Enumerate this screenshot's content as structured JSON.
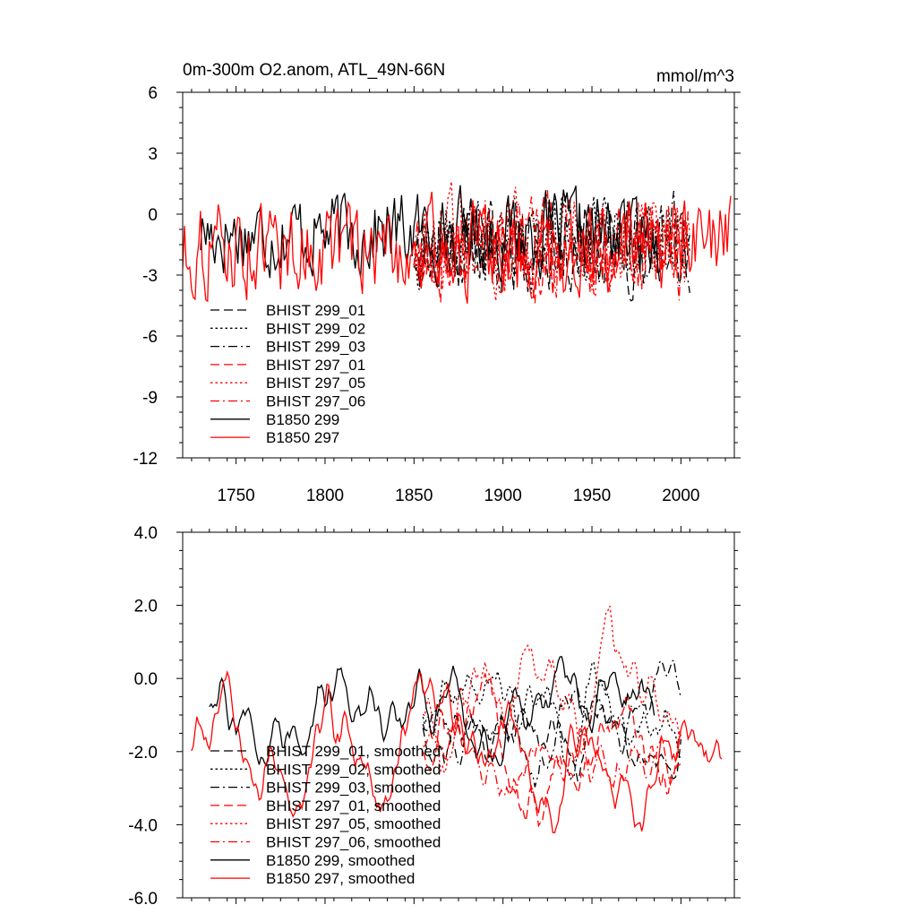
{
  "chart_data": [
    {
      "type": "line",
      "title": "0m-300m O2.anom, ATL_49N-66N",
      "units": "mmol/m^3",
      "xlim": [
        1720,
        2030
      ],
      "ylim": [
        -12,
        6
      ],
      "xticks": [
        1750,
        1800,
        1850,
        1900,
        1950,
        2000
      ],
      "xtick_labels": [
        "1750",
        "1800",
        "1850",
        "1900",
        "1950",
        "2000"
      ],
      "yticks": [
        -12,
        -9,
        -6,
        -3,
        0,
        3,
        6
      ],
      "ytick_labels": [
        "-12",
        "-9",
        "-6",
        "-3",
        "0",
        "3",
        "6"
      ],
      "legend_position": "bottom-left",
      "series": [
        {
          "name": "BHIST 299_01",
          "color": "#000000",
          "dash": "dashed",
          "x_start": 1850,
          "x_end": 2005,
          "mean": -1.5,
          "amp": 1.8,
          "seed": 11
        },
        {
          "name": "BHIST 299_02",
          "color": "#000000",
          "dash": "dotted",
          "x_start": 1850,
          "x_end": 2005,
          "mean": -1.4,
          "amp": 1.8,
          "seed": 12
        },
        {
          "name": "BHIST 299_03",
          "color": "#000000",
          "dash": "dashdot",
          "x_start": 1850,
          "x_end": 2005,
          "mean": -1.5,
          "amp": 1.8,
          "seed": 13
        },
        {
          "name": "BHIST 297_01",
          "color": "#ff0000",
          "dash": "dashed",
          "x_start": 1850,
          "x_end": 2005,
          "mean": -1.6,
          "amp": 2.0,
          "seed": 14
        },
        {
          "name": "BHIST 297_05",
          "color": "#ff0000",
          "dash": "dotted",
          "x_start": 1850,
          "x_end": 2005,
          "mean": -1.5,
          "amp": 2.0,
          "seed": 15
        },
        {
          "name": "BHIST 297_06",
          "color": "#ff0000",
          "dash": "dashdot",
          "x_start": 1850,
          "x_end": 2005,
          "mean": -1.6,
          "amp": 2.0,
          "seed": 16
        },
        {
          "name": "B1850 299",
          "color": "#000000",
          "dash": "solid",
          "x_start": 1730,
          "x_end": 1988,
          "mean": -0.9,
          "amp": 1.7,
          "seed": 17
        },
        {
          "name": "B1850 297",
          "color": "#ff0000",
          "dash": "solid",
          "x_start": 1720,
          "x_end": 2028,
          "mean": -1.7,
          "amp": 1.9,
          "seed": 18
        }
      ]
    },
    {
      "type": "line",
      "title": "",
      "xlim": [
        1720,
        2030
      ],
      "ylim": [
        -6,
        4
      ],
      "xticks": [
        1750,
        1800,
        1850,
        1900,
        1950,
        2000
      ],
      "xtick_labels": [],
      "yticks": [
        -6,
        -4,
        -2,
        0,
        2,
        4
      ],
      "ytick_labels": [
        "-6.0",
        "-4.0",
        "-2.0",
        "0.0",
        "2.0",
        "4.0"
      ],
      "legend_position": "bottom-left",
      "series": [
        {
          "name": "BHIST 299_01, smoothed",
          "color": "#000000",
          "dash": "dashed",
          "x_start": 1855,
          "x_end": 2000,
          "mean": -1.2,
          "amp": 1.2,
          "seed": 21
        },
        {
          "name": "BHIST 299_02, smoothed",
          "color": "#000000",
          "dash": "dotted",
          "x_start": 1855,
          "x_end": 2000,
          "mean": -0.9,
          "amp": 1.2,
          "seed": 22
        },
        {
          "name": "BHIST 299_03, smoothed",
          "color": "#000000",
          "dash": "dashdot",
          "x_start": 1855,
          "x_end": 2000,
          "mean": -1.1,
          "amp": 1.2,
          "seed": 23
        },
        {
          "name": "BHIST 297_01, smoothed",
          "color": "#ff0000",
          "dash": "dashed",
          "x_start": 1855,
          "x_end": 2000,
          "mean": -1.8,
          "amp": 1.6,
          "seed": 24
        },
        {
          "name": "BHIST 297_05, smoothed",
          "color": "#ff0000",
          "dash": "dotted",
          "x_start": 1855,
          "x_end": 2000,
          "mean": -0.8,
          "amp": 1.4,
          "seed": 25
        },
        {
          "name": "BHIST 297_06, smoothed",
          "color": "#ff0000",
          "dash": "dashdot",
          "x_start": 1855,
          "x_end": 2000,
          "mean": -1.7,
          "amp": 1.3,
          "seed": 26
        },
        {
          "name": "B1850 299, smoothed",
          "color": "#000000",
          "dash": "solid",
          "x_start": 1735,
          "x_end": 1985,
          "mean": -0.6,
          "amp": 1.4,
          "seed": 27
        },
        {
          "name": "B1850 297, smoothed",
          "color": "#ff0000",
          "dash": "solid",
          "x_start": 1725,
          "x_end": 2023,
          "mean": -1.8,
          "amp": 1.5,
          "seed": 28
        }
      ]
    }
  ]
}
